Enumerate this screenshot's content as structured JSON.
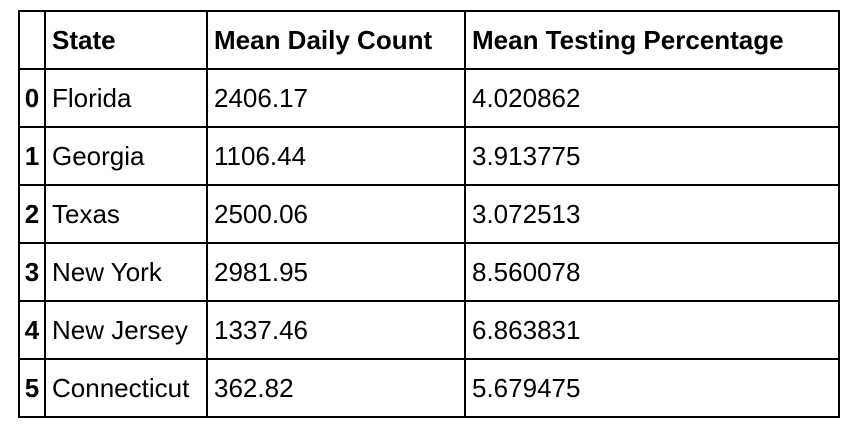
{
  "table": {
    "index_header": "",
    "columns": [
      "State",
      "Mean Daily Count",
      "Mean Testing Percentage"
    ],
    "rows": [
      {
        "index": "0",
        "state": "Florida",
        "count": "2406.17",
        "pct": "4.020862"
      },
      {
        "index": "1",
        "state": "Georgia",
        "count": "1106.44",
        "pct": "3.913775"
      },
      {
        "index": "2",
        "state": "Texas",
        "count": "2500.06",
        "pct": "3.072513"
      },
      {
        "index": "3",
        "state": "New York",
        "count": "2981.95",
        "pct": "8.560078"
      },
      {
        "index": "4",
        "state": "New Jersey",
        "count": "1337.46",
        "pct": "6.863831"
      },
      {
        "index": "5",
        "state": "Connecticut",
        "count": "362.82",
        "pct": "5.679475"
      }
    ]
  }
}
